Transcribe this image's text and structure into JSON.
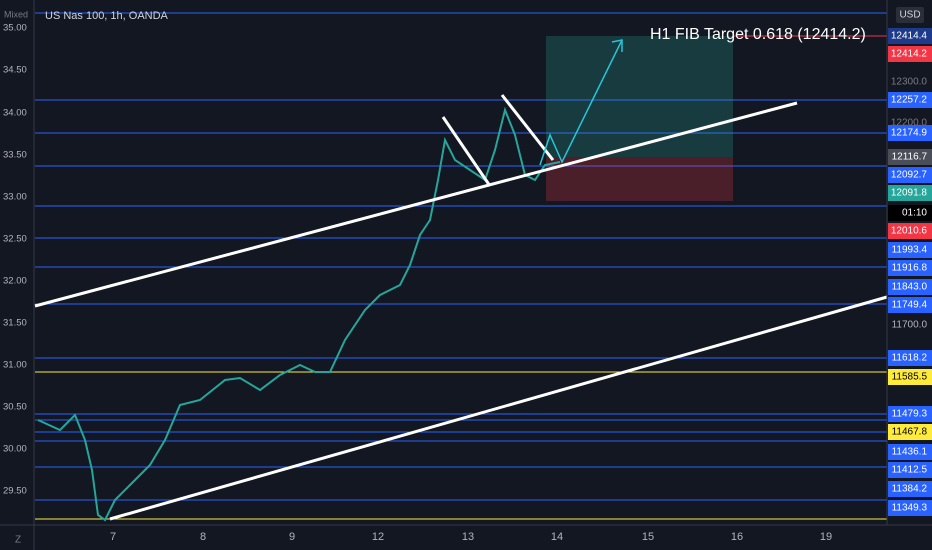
{
  "header": {
    "symbol": "US Nas 100, 1h, OANDA",
    "mode": "Mixed",
    "currency": "USD"
  },
  "annotation": "H1 FIB Target 0.618 (12414.2)",
  "left_axis": [
    "35.00",
    "34.50",
    "34.00",
    "33.50",
    "33.00",
    "32.50",
    "32.00",
    "31.50",
    "31.00",
    "30.50",
    "30.00",
    "29.50"
  ],
  "right_axis": [
    "12414.4",
    "12414.2",
    "12300.0",
    "12257.2",
    "12200.0",
    "12174.9",
    "12116.7",
    "12092.7",
    "12091.8",
    "01:10",
    "12010.6",
    "11993.4",
    "11916.8",
    "11843.0",
    "11749.4",
    "11700.0",
    "11618.2",
    "11585.5",
    "11479.3",
    "11467.8",
    "11436.1",
    "11412.5",
    "11384.2",
    "11349.3"
  ],
  "x_axis": [
    "7",
    "8",
    "9",
    "12",
    "13",
    "14",
    "15",
    "16",
    "19"
  ],
  "footer": "Z"
}
